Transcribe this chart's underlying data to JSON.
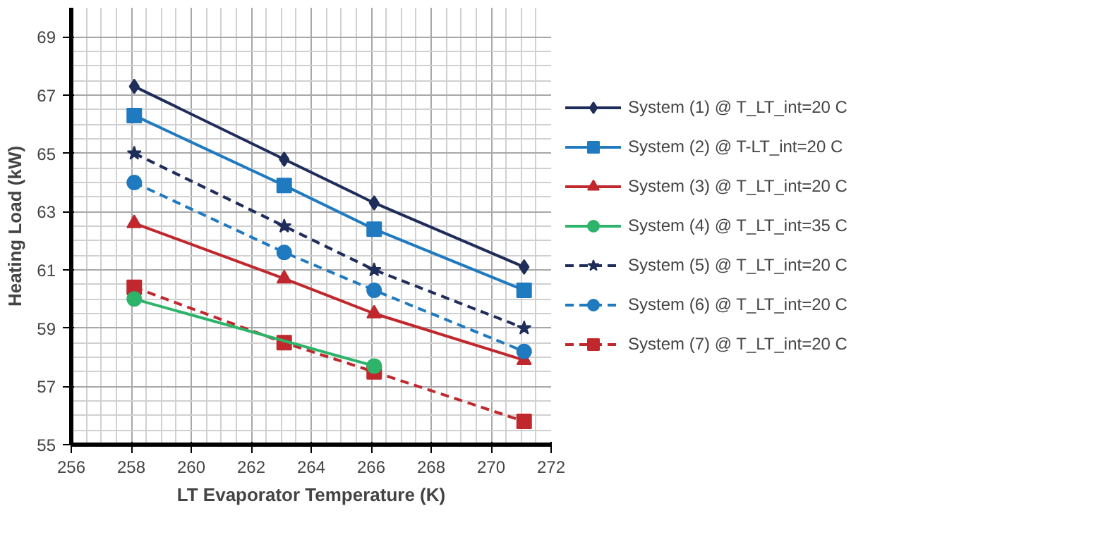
{
  "chart_data": {
    "type": "line",
    "xlabel": "LT Evaporator Temperature (K)",
    "ylabel": "Heating Load (kW)",
    "x": [
      258.1,
      263.1,
      266.1,
      271.1
    ],
    "xlim": [
      256,
      272
    ],
    "xticks": [
      256,
      258,
      260,
      262,
      264,
      266,
      268,
      270,
      272
    ],
    "ylim": [
      55,
      70
    ],
    "yticks": [
      55,
      57,
      59,
      61,
      63,
      65,
      67,
      69
    ],
    "grid": true,
    "legend": "right",
    "series": [
      {
        "name": "System (1) @ T_LT_int=20 C",
        "color": "#1f2d5a",
        "marker": "diamond",
        "line_style": "solid",
        "values": [
          67.3,
          64.8,
          63.3,
          61.1
        ]
      },
      {
        "name": "System (2) @ T-LT_int=20 C",
        "color": "#1f7ac0",
        "marker": "square",
        "line_style": "solid",
        "values": [
          66.3,
          63.9,
          62.4,
          60.3
        ]
      },
      {
        "name": "System (3) @ T_LT_int=20 C",
        "color": "#c0282d",
        "marker": "triangle",
        "line_style": "solid",
        "values": [
          62.6,
          60.7,
          59.5,
          57.9
        ]
      },
      {
        "name": "System (4) @ T_LT_int=35 C",
        "color": "#2db36a",
        "marker": "circle",
        "line_style": "solid",
        "x": [
          258.1,
          266.1
        ],
        "values": [
          60.0,
          57.7
        ]
      },
      {
        "name": "System (5) @ T_LT_int=20 C",
        "color": "#1f2d5a",
        "marker": "star",
        "line_style": "dashed",
        "values": [
          65.0,
          62.5,
          61.0,
          59.0
        ]
      },
      {
        "name": "System (6) @ T_LT_int=20 C",
        "color": "#1f7ac0",
        "marker": "circle",
        "line_style": "dashed",
        "values": [
          64.0,
          61.6,
          60.3,
          58.2
        ]
      },
      {
        "name": "System (7) @ T_LT_int=20 C",
        "color": "#c0282d",
        "marker": "square",
        "line_style": "dashed",
        "values": [
          60.4,
          58.5,
          57.5,
          55.8
        ]
      }
    ]
  }
}
